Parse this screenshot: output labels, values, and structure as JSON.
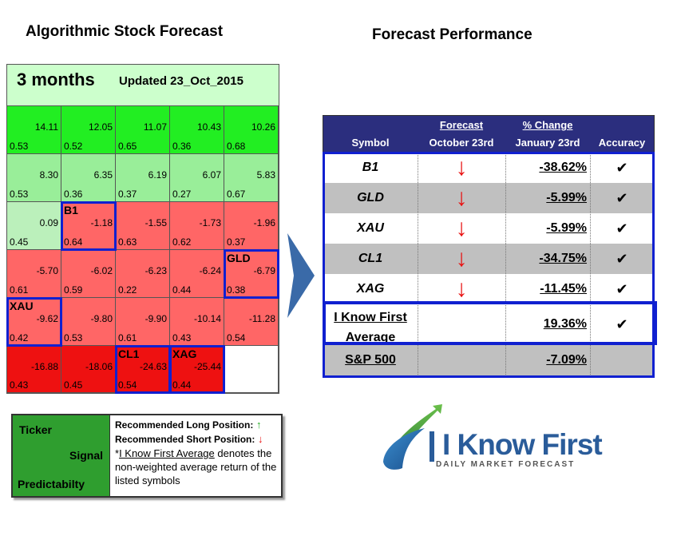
{
  "titles": {
    "left": "Algorithmic Stock Forecast",
    "right": "Forecast Performance"
  },
  "heatmap": {
    "period": "3 months",
    "updated": "Updated 23_Oct_2015",
    "rows": [
      [
        {
          "signal": "14.11",
          "pred": "0.53",
          "color": "#22ee22"
        },
        {
          "signal": "12.05",
          "pred": "0.52",
          "color": "#22ee22"
        },
        {
          "signal": "11.07",
          "pred": "0.65",
          "color": "#22ee22"
        },
        {
          "signal": "10.43",
          "pred": "0.36",
          "color": "#22ee22"
        },
        {
          "signal": "10.26",
          "pred": "0.68",
          "color": "#22ee22"
        }
      ],
      [
        {
          "signal": "8.30",
          "pred": "0.53",
          "color": "#99ee99"
        },
        {
          "signal": "6.35",
          "pred": "0.36",
          "color": "#99ee99"
        },
        {
          "signal": "6.19",
          "pred": "0.37",
          "color": "#99ee99"
        },
        {
          "signal": "6.07",
          "pred": "0.27",
          "color": "#99ee99"
        },
        {
          "signal": "5.83",
          "pred": "0.67",
          "color": "#99ee99"
        }
      ],
      [
        {
          "signal": "0.09",
          "pred": "0.45",
          "color": "#bbf0bb"
        },
        {
          "ticker": "B1",
          "signal": "-1.18",
          "pred": "0.64",
          "color": "#ff6666"
        },
        {
          "signal": "-1.55",
          "pred": "0.63",
          "color": "#ff6666"
        },
        {
          "signal": "-1.73",
          "pred": "0.62",
          "color": "#ff6666"
        },
        {
          "signal": "-1.96",
          "pred": "0.37",
          "color": "#ff6666"
        }
      ],
      [
        {
          "signal": "-5.70",
          "pred": "0.61",
          "color": "#ff6666"
        },
        {
          "signal": "-6.02",
          "pred": "0.59",
          "color": "#ff6666"
        },
        {
          "signal": "-6.23",
          "pred": "0.22",
          "color": "#ff6666"
        },
        {
          "signal": "-6.24",
          "pred": "0.44",
          "color": "#ff6666"
        },
        {
          "ticker": "GLD",
          "signal": "-6.79",
          "pred": "0.38",
          "color": "#ff6666"
        }
      ],
      [
        {
          "ticker": "XAU",
          "signal": "-9.62",
          "pred": "0.42",
          "color": "#ff6666"
        },
        {
          "signal": "-9.80",
          "pred": "0.53",
          "color": "#ff6666"
        },
        {
          "signal": "-9.90",
          "pred": "0.61",
          "color": "#ff6666"
        },
        {
          "signal": "-10.14",
          "pred": "0.43",
          "color": "#ff6666"
        },
        {
          "signal": "-11.28",
          "pred": "0.54",
          "color": "#ff6666"
        }
      ],
      [
        {
          "signal": "-16.88",
          "pred": "0.43",
          "color": "#ee1111"
        },
        {
          "signal": "-18.06",
          "pred": "0.45",
          "color": "#ee1111"
        },
        {
          "ticker": "CL1",
          "signal": "-24.63",
          "pred": "0.54",
          "color": "#ee1111"
        },
        {
          "ticker": "XAG",
          "signal": "-25.44",
          "pred": "0.44",
          "color": "#ee1111"
        },
        {
          "signal": "",
          "pred": "",
          "color": "#ffffff"
        }
      ]
    ]
  },
  "perf": {
    "headers": {
      "symbol": "Symbol",
      "forecast": "Forecast",
      "forecast_sub": "October 23rd",
      "change": "% Change",
      "change_sub": "January 23rd",
      "accuracy": "Accuracy"
    },
    "rows": [
      {
        "symbol": "B1",
        "arrow": "↓",
        "pct": "-38.62%",
        "acc": "✔"
      },
      {
        "symbol": "GLD",
        "arrow": "↓",
        "pct": "-5.99%",
        "acc": "✔"
      },
      {
        "symbol": "XAU",
        "arrow": "↓",
        "pct": "-5.99%",
        "acc": "✔"
      },
      {
        "symbol": "CL1",
        "arrow": "↓",
        "pct": "-34.75%",
        "acc": "✔"
      },
      {
        "symbol": "XAG",
        "arrow": "↓",
        "pct": "-11.45%",
        "acc": "✔"
      }
    ],
    "average": {
      "line1": "I Know First",
      "line2": "Average",
      "pct": "19.36%",
      "acc": "✔"
    },
    "sp500": {
      "symbol": "S&P 500",
      "pct": "-7.09%"
    }
  },
  "legend": {
    "ticker": "Ticker",
    "signal": "Signal",
    "pred": "Predictabilty",
    "long": "Recommended Long Position:",
    "long_arrow": "↑",
    "short": "Recommended Short Position:",
    "short_arrow": "↓",
    "note_star": "*",
    "note_link": "I Know First Average",
    "note_rest": " denotes the non-weighted average return of the listed symbols"
  },
  "logo": {
    "name": "I Know First",
    "tagline": "DAILY MARKET FORECAST"
  }
}
